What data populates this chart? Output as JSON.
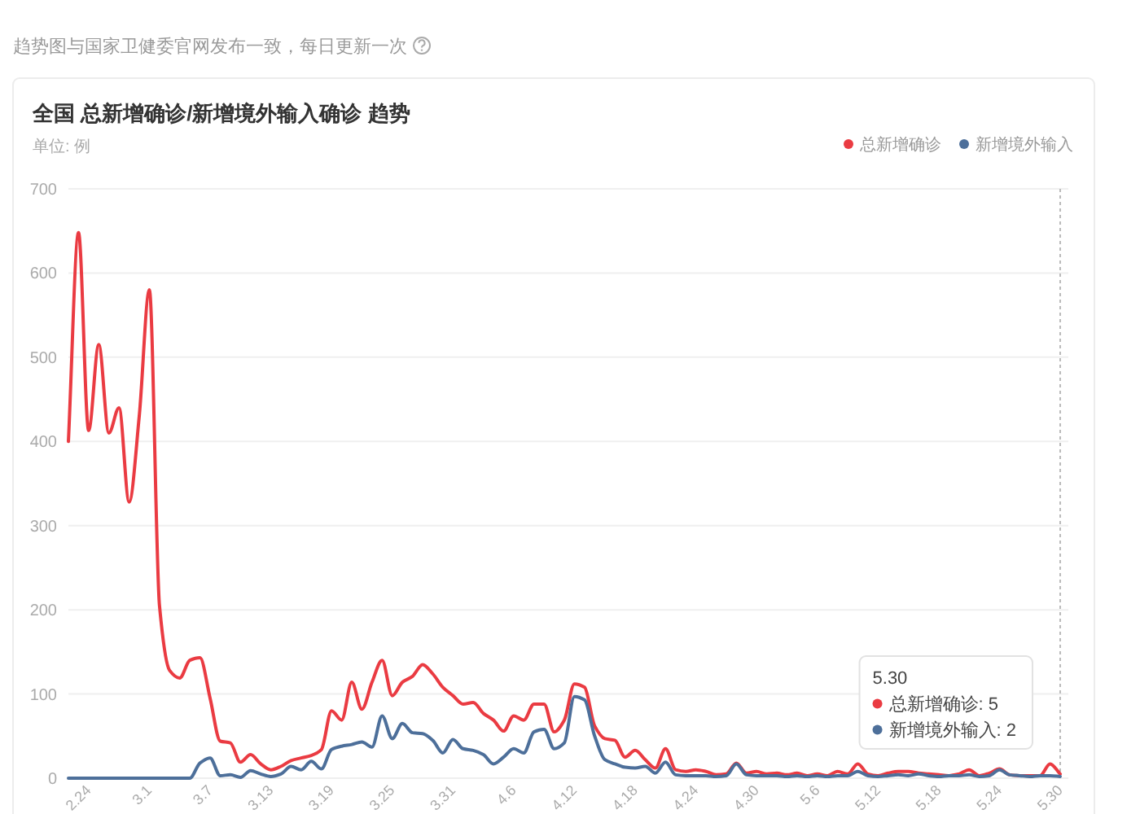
{
  "chart_data": {
    "type": "line",
    "title": "全国 总新增确诊/新增境外输入确诊 趋势",
    "subtitle": "趋势图与国家卫健委官网发布一致，每日更新一次",
    "ylabel": "单位: 例",
    "categories": [
      null,
      null,
      "2.24",
      null,
      null,
      null,
      null,
      null,
      "3.1",
      null,
      null,
      null,
      null,
      null,
      "3.7",
      null,
      null,
      null,
      null,
      null,
      "3.13",
      null,
      null,
      null,
      null,
      null,
      "3.19",
      null,
      null,
      null,
      null,
      null,
      "3.25",
      null,
      null,
      null,
      null,
      null,
      "3.31",
      null,
      null,
      null,
      null,
      null,
      "4.6",
      null,
      null,
      null,
      null,
      null,
      "4.12",
      null,
      null,
      null,
      null,
      null,
      "4.18",
      null,
      null,
      null,
      null,
      null,
      "4.24",
      null,
      null,
      null,
      null,
      null,
      "4.30",
      null,
      null,
      null,
      null,
      null,
      "5.6",
      null,
      null,
      null,
      null,
      null,
      "5.12",
      null,
      null,
      null,
      null,
      null,
      "5.18",
      null,
      null,
      null,
      null,
      null,
      "5.24",
      null,
      null,
      null,
      null,
      null,
      "5.30"
    ],
    "series": [
      {
        "name": "总新增确诊",
        "color": "#ea3b42",
        "values": [
          400,
          648,
          413,
          515,
          410,
          440,
          328,
          430,
          580,
          205,
          128,
          119,
          140,
          143,
          95,
          44,
          42,
          19,
          28,
          17,
          10,
          14,
          21,
          24,
          27,
          34,
          80,
          69,
          114,
          82,
          114,
          140,
          98,
          114,
          121,
          135,
          124,
          108,
          98,
          88,
          90,
          77,
          69,
          56,
          74,
          69,
          88,
          88,
          55,
          69,
          112,
          108,
          62,
          47,
          45,
          25,
          33,
          22,
          12,
          35,
          10,
          8,
          10,
          8,
          4,
          5,
          18,
          6,
          8,
          5,
          6,
          4,
          6,
          3,
          5,
          3,
          8,
          5,
          17,
          5,
          3,
          6,
          8,
          8,
          6,
          5,
          4,
          3,
          5,
          10,
          3,
          6,
          11,
          4,
          3,
          3,
          3,
          17,
          5
        ]
      },
      {
        "name": "新增境外输入",
        "color": "#4d6f9a",
        "values": [
          0,
          0,
          0,
          0,
          0,
          0,
          0,
          0,
          0,
          0,
          0,
          0,
          0,
          18,
          24,
          3,
          4,
          1,
          9,
          5,
          2,
          5,
          14,
          10,
          20,
          11,
          34,
          38,
          40,
          43,
          37,
          74,
          47,
          65,
          54,
          53,
          45,
          30,
          46,
          35,
          33,
          28,
          17,
          25,
          35,
          30,
          55,
          58,
          35,
          42,
          97,
          93,
          50,
          22,
          17,
          13,
          12,
          14,
          6,
          19,
          4,
          3,
          3,
          3,
          2,
          3,
          17,
          4,
          3,
          3,
          3,
          2,
          3,
          2,
          3,
          2,
          3,
          3,
          8,
          3,
          2,
          3,
          4,
          3,
          5,
          3,
          2,
          3,
          3,
          4,
          2,
          3,
          10,
          4,
          3,
          2,
          3,
          3,
          2
        ]
      }
    ],
    "ylim": [
      0,
      700
    ],
    "yticks": [
      0,
      100,
      200,
      300,
      400,
      500,
      600,
      700
    ],
    "grid": "y",
    "legend": "top right",
    "ref_lines": [
      {
        "axis": "x",
        "value": "5.30",
        "line_style": "dotted",
        "color": "#bbbbbb"
      }
    ],
    "annotations": [
      "总新增确诊: 5",
      "新增境外输入: 2"
    ]
  }
}
